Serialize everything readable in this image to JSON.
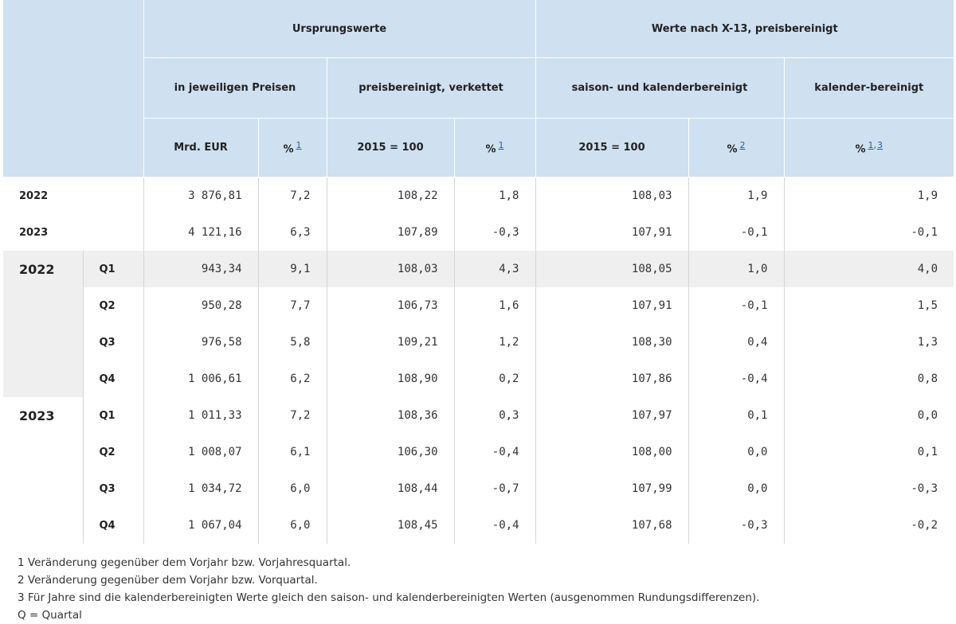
{
  "header": {
    "group1": "Ursprungswerte",
    "group2": "Werte nach X-13, preisbereinigt",
    "sub1": "in jeweiligen Preisen",
    "sub2": "preisbereinigt, verkettet",
    "sub3": "saison- und kalenderbereinigt",
    "sub4": "kalender-bereinigt",
    "col1": "Mrd. EUR",
    "col2": "%",
    "col2_fn": "1",
    "col3": "2015 = 100",
    "col4": "%",
    "col4_fn": "1",
    "col5": "2015 = 100",
    "col6": "%",
    "col6_fn": "2",
    "col7": "%",
    "col7_fn_a": "1",
    "col7_sep": ",",
    "col7_fn_b": "3"
  },
  "annual": [
    {
      "year": "2022",
      "v": [
        "3 876,81",
        "7,2",
        "108,22",
        "1,8",
        "108,03",
        "1,9",
        "1,9"
      ]
    },
    {
      "year": "2023",
      "v": [
        "4 121,16",
        "6,3",
        "107,89",
        "-0,3",
        "107,91",
        "-0,1",
        "-0,1"
      ]
    }
  ],
  "quarterly": [
    {
      "year": "2022",
      "rows": [
        {
          "q": "Q1",
          "v": [
            "943,34",
            "9,1",
            "108,03",
            "4,3",
            "108,05",
            "1,0",
            "4,0"
          ]
        },
        {
          "q": "Q2",
          "v": [
            "950,28",
            "7,7",
            "106,73",
            "1,6",
            "107,91",
            "-0,1",
            "1,5"
          ]
        },
        {
          "q": "Q3",
          "v": [
            "976,58",
            "5,8",
            "109,21",
            "1,2",
            "108,30",
            "0,4",
            "1,3"
          ]
        },
        {
          "q": "Q4",
          "v": [
            "1 006,61",
            "6,2",
            "108,90",
            "0,2",
            "107,86",
            "-0,4",
            "0,8"
          ]
        }
      ]
    },
    {
      "year": "2023",
      "rows": [
        {
          "q": "Q1",
          "v": [
            "1 011,33",
            "7,2",
            "108,36",
            "0,3",
            "107,97",
            "0,1",
            "0,0"
          ]
        },
        {
          "q": "Q2",
          "v": [
            "1 008,07",
            "6,1",
            "106,30",
            "-0,4",
            "108,00",
            "0,0",
            "0,1"
          ]
        },
        {
          "q": "Q3",
          "v": [
            "1 034,72",
            "6,0",
            "108,44",
            "-0,7",
            "107,99",
            "0,0",
            "-0,3"
          ]
        },
        {
          "q": "Q4",
          "v": [
            "1 067,04",
            "6,0",
            "108,45",
            "-0,4",
            "107,68",
            "-0,3",
            "-0,2"
          ]
        }
      ]
    }
  ],
  "notes": {
    "n1": "1 Veränderung gegenüber dem Vorjahr bzw. Vorjahresquartal.",
    "n2": "2 Veränderung gegenüber dem Vorjahr bzw. Vorquartal.",
    "n3": "3 Für Jahre sind die kalenderbereinigten Werte gleich den saison- und kalenderbereinigten Werten (ausgenommen Rundungsdifferenzen).",
    "n4": "Q = Quartal"
  }
}
